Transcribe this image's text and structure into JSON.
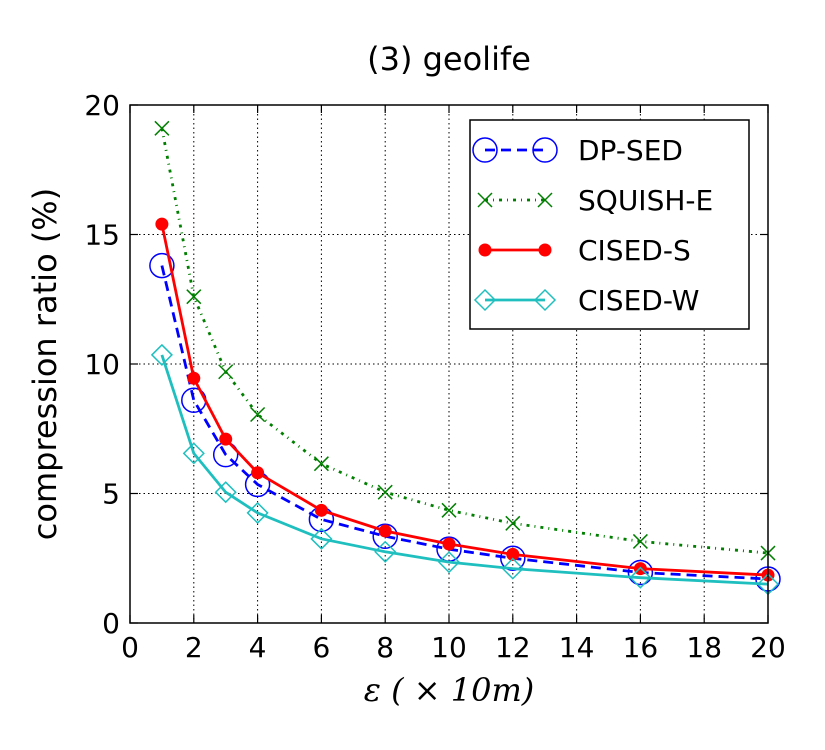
{
  "chart_data": {
    "type": "line",
    "title": "(3) geolife",
    "xlabel": "ε ( × 10m)",
    "ylabel": "compression ratio (%)",
    "xlim": [
      0,
      20
    ],
    "ylim": [
      0,
      20
    ],
    "xticks": [
      0,
      2,
      4,
      6,
      8,
      10,
      12,
      14,
      16,
      18,
      20
    ],
    "yticks": [
      0,
      5,
      10,
      15,
      20
    ],
    "grid": true,
    "legend_position": "top-right",
    "x": [
      1,
      2,
      3,
      4,
      6,
      8,
      10,
      12,
      16,
      20
    ],
    "series": [
      {
        "name": "DP-SED",
        "color": "#0000ff",
        "line_style": "dashed",
        "marker": "circle-open",
        "values": [
          13.8,
          8.6,
          6.5,
          5.35,
          4.0,
          3.35,
          2.85,
          2.5,
          1.95,
          1.7
        ]
      },
      {
        "name": "SQUISH-E",
        "color": "#007f00",
        "line_style": "dash-dot",
        "marker": "x",
        "values": [
          19.1,
          12.6,
          9.7,
          8.05,
          6.15,
          5.05,
          4.35,
          3.85,
          3.15,
          2.7
        ]
      },
      {
        "name": "CISED-S",
        "color": "#ff0000",
        "line_style": "solid",
        "marker": "circle-filled",
        "values": [
          15.4,
          9.45,
          7.1,
          5.8,
          4.35,
          3.55,
          3.05,
          2.65,
          2.1,
          1.85
        ]
      },
      {
        "name": "CISED-W",
        "color": "#1fbfbf",
        "line_style": "solid",
        "marker": "diamond-open",
        "values": [
          10.35,
          6.55,
          5.05,
          4.25,
          3.25,
          2.75,
          2.35,
          2.1,
          1.75,
          1.5
        ]
      }
    ]
  }
}
